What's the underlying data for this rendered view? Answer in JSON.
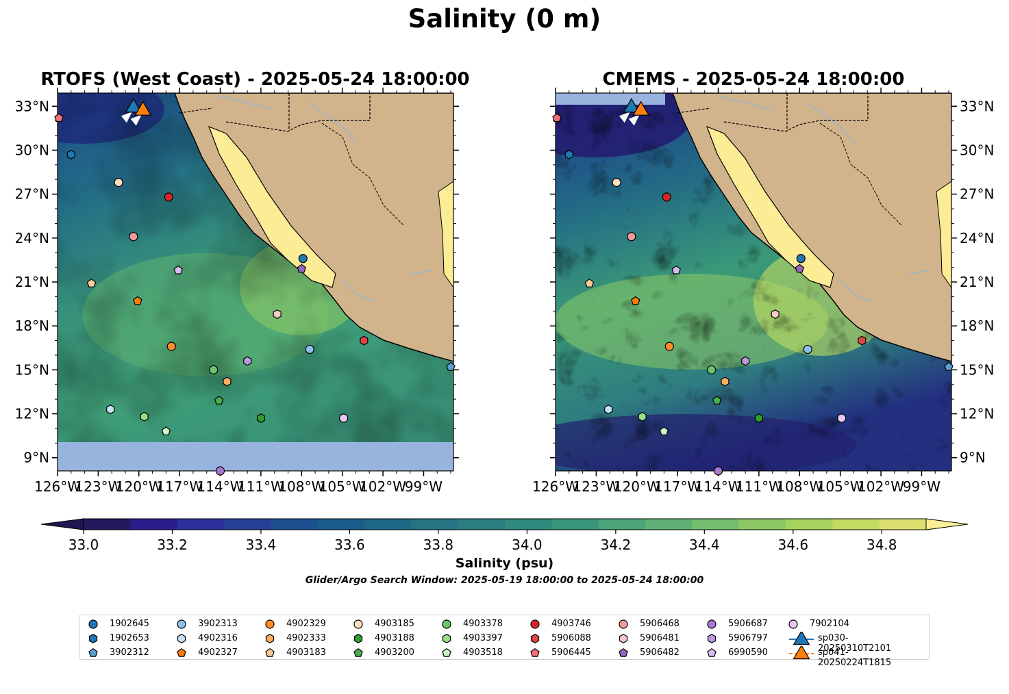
{
  "title": "Salinity (0 m)",
  "maps": [
    {
      "title": "RTOFS (West Coast) - 2025-05-24 18:00:00",
      "colormap_variant": "rtofs"
    },
    {
      "title": "CMEMS - 2025-05-24 18:00:00",
      "colormap_variant": "cmems"
    }
  ],
  "axes": {
    "lon_labels": [
      "126°W",
      "123°W",
      "120°W",
      "117°W",
      "114°W",
      "111°W",
      "108°W",
      "105°W",
      "102°W",
      "99°W"
    ],
    "lon_values": [
      -126,
      -123,
      -120,
      -117,
      -114,
      -111,
      -108,
      -105,
      -102,
      -99
    ],
    "lat_labels": [
      "33°N",
      "30°N",
      "27°N",
      "24°N",
      "21°N",
      "18°N",
      "15°N",
      "12°N",
      "9°N"
    ],
    "lat_values": [
      33,
      30,
      27,
      24,
      21,
      18,
      15,
      12,
      9
    ],
    "lon_range": [
      -126,
      -96.8
    ],
    "lat_range": [
      8.1,
      33.9
    ]
  },
  "colorbar": {
    "label": "Salinity (psu)",
    "tick_labels": [
      "33.0",
      "33.2",
      "33.4",
      "33.6",
      "33.8",
      "34.0",
      "34.2",
      "34.4",
      "34.6",
      "34.8"
    ],
    "tick_values": [
      33.0,
      33.2,
      33.4,
      33.6,
      33.8,
      34.0,
      34.2,
      34.4,
      34.6,
      34.8
    ],
    "range": [
      33.0,
      34.9
    ],
    "colors": [
      "#26185f",
      "#2a1e8c",
      "#2d2f9c",
      "#273f95",
      "#1d4f91",
      "#195d8b",
      "#1f6887",
      "#257383",
      "#2a7e80",
      "#2f8a7d",
      "#3a967b",
      "#4ba378",
      "#5eb074",
      "#74bd6e",
      "#8cc866",
      "#a6d35f",
      "#c1dc5f",
      "#dadf70"
    ],
    "under_color": "#20154f",
    "over_color": "#fcee97"
  },
  "window_text": "Glider/Argo Search Window: 2025-05-19 18:00:00 to 2025-05-24 18:00:00",
  "colors": {
    "land": "#d2b48c",
    "gulf": "#fbec95",
    "nodata": "#98b4de",
    "rivers": "#9bb4cc"
  },
  "legend": [
    {
      "id": "1902645",
      "shape": "circle",
      "color": "#1f77b4"
    },
    {
      "id": "1902653",
      "shape": "hexagon",
      "color": "#1f77b4"
    },
    {
      "id": "3902312",
      "shape": "pentagon",
      "color": "#5a9fd4"
    },
    {
      "id": "3902313",
      "shape": "circle",
      "color": "#8cc0ea"
    },
    {
      "id": "4902316",
      "shape": "hexagon",
      "color": "#c6e2f7"
    },
    {
      "id": "4902327",
      "shape": "pentagon",
      "color": "#ff7f0e"
    },
    {
      "id": "4902329",
      "shape": "circle",
      "color": "#ff8c2a"
    },
    {
      "id": "4902333",
      "shape": "hexagon",
      "color": "#ffae66"
    },
    {
      "id": "4903183",
      "shape": "pentagon",
      "color": "#ffcc99"
    },
    {
      "id": "4903185",
      "shape": "circle",
      "color": "#ffdfbf"
    },
    {
      "id": "4903188",
      "shape": "hexagon",
      "color": "#2ca02c"
    },
    {
      "id": "4903200",
      "shape": "pentagon",
      "color": "#4cb04c"
    },
    {
      "id": "4903378",
      "shape": "circle",
      "color": "#6cc56c"
    },
    {
      "id": "4903397",
      "shape": "hexagon",
      "color": "#98df8a"
    },
    {
      "id": "4903518",
      "shape": "pentagon",
      "color": "#ccf5c4"
    },
    {
      "id": "4903746",
      "shape": "circle",
      "color": "#d62728"
    },
    {
      "id": "5906088",
      "shape": "hexagon",
      "color": "#e04546"
    },
    {
      "id": "5906445",
      "shape": "pentagon",
      "color": "#f07178"
    },
    {
      "id": "5906468",
      "shape": "circle",
      "color": "#f49a9c"
    },
    {
      "id": "5906481",
      "shape": "hexagon",
      "color": "#fbc8c7"
    },
    {
      "id": "5906482",
      "shape": "pentagon",
      "color": "#9467bd"
    },
    {
      "id": "5906687",
      "shape": "circle",
      "color": "#a579cf"
    },
    {
      "id": "5906797",
      "shape": "hexagon",
      "color": "#bd98e0"
    },
    {
      "id": "6990590",
      "shape": "pentagon",
      "color": "#d7bdee"
    },
    {
      "id": "7902104",
      "shape": "circle",
      "color": "#e8c8f5"
    },
    {
      "id": "sp030-20250310T2101",
      "shape": "triangle",
      "color": "#1f77b4"
    },
    {
      "id": "sp041-20250224T1815",
      "shape": "triangle",
      "color": "#ff7f0e"
    }
  ],
  "observations": [
    {
      "id": "1902645",
      "lon": -107.9,
      "lat": 22.6
    },
    {
      "id": "1902653",
      "lon": -125.0,
      "lat": 29.7
    },
    {
      "id": "3902312",
      "lon": -97.0,
      "lat": 15.2
    },
    {
      "id": "3902313",
      "lon": -107.4,
      "lat": 16.4
    },
    {
      "id": "4902316",
      "lon": -122.1,
      "lat": 12.3
    },
    {
      "id": "4902327",
      "lon": -120.1,
      "lat": 19.7
    },
    {
      "id": "4902329",
      "lon": -117.6,
      "lat": 16.6
    },
    {
      "id": "4902333",
      "lon": -113.5,
      "lat": 14.2
    },
    {
      "id": "4903183",
      "lon": -123.5,
      "lat": 20.9
    },
    {
      "id": "4903185",
      "lon": -121.5,
      "lat": 27.8
    },
    {
      "id": "4903188",
      "lon": -111.0,
      "lat": 11.7
    },
    {
      "id": "4903200",
      "lon": -114.1,
      "lat": 12.9
    },
    {
      "id": "4903378",
      "lon": -114.5,
      "lat": 15.0
    },
    {
      "id": "4903397",
      "lon": -119.6,
      "lat": 11.8
    },
    {
      "id": "4903518",
      "lon": -118.0,
      "lat": 10.8
    },
    {
      "id": "4903746",
      "lon": -117.8,
      "lat": 26.8
    },
    {
      "id": "5906088",
      "lon": -103.4,
      "lat": 17.0
    },
    {
      "id": "5906445",
      "lon": -125.9,
      "lat": 32.2
    },
    {
      "id": "5906468",
      "lon": -120.4,
      "lat": 24.1
    },
    {
      "id": "5906481",
      "lon": -109.8,
      "lat": 18.8
    },
    {
      "id": "5906482",
      "lon": -108.0,
      "lat": 21.9
    },
    {
      "id": "5906687",
      "lon": -114.0,
      "lat": 8.1
    },
    {
      "id": "5906797",
      "lon": -112.0,
      "lat": 15.6
    },
    {
      "id": "6990590",
      "lon": -117.1,
      "lat": 21.8
    },
    {
      "id": "7902104",
      "lon": -104.9,
      "lat": 11.7
    },
    {
      "id": "sp030-20250310T2101",
      "lon": -120.4,
      "lat": 32.9
    },
    {
      "id": "sp041-20250224T1815",
      "lon": -119.7,
      "lat": 32.7
    }
  ]
}
